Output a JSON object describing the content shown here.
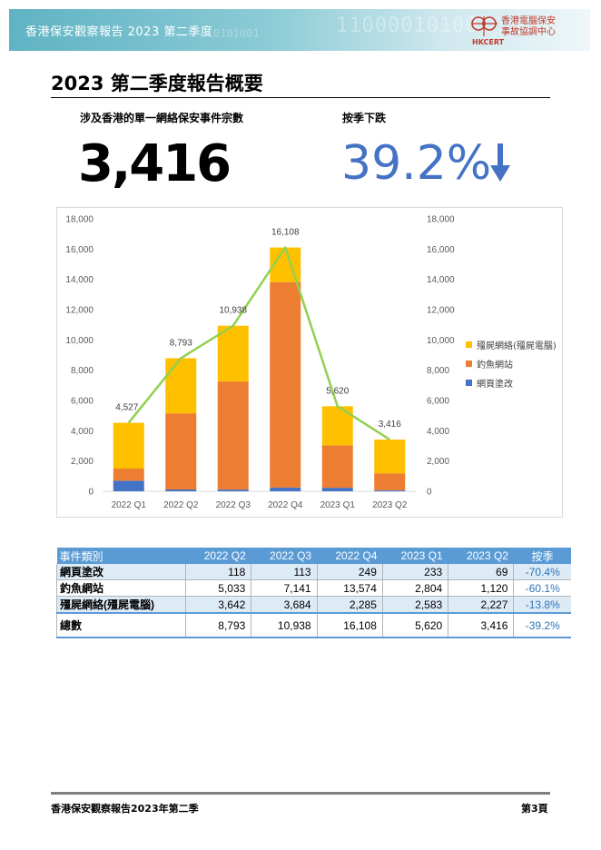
{
  "header": {
    "banner_title": "香港保安觀察報告 2023 第二季度",
    "binary_text": "110000101001",
    "binary_text2": "0101001",
    "logo_org_line1": "香港電腦保安",
    "logo_org_line2": "事故協調中心",
    "logo_abbr": "HKCERT"
  },
  "page_title": "2023 第二季度報告概要",
  "summary": {
    "count_label": "涉及香港的單一網絡保安事件宗數",
    "count_value": "3,416",
    "change_label": "按季下跌",
    "change_value": "39.2%"
  },
  "chart_data": {
    "type": "bar",
    "stacked": true,
    "categories": [
      "2022 Q1",
      "2022 Q2",
      "2022 Q3",
      "2022 Q4",
      "2023 Q1",
      "2023 Q2"
    ],
    "series": [
      {
        "name": "網頁塗改",
        "color": "#4472c4",
        "values": [
          700,
          118,
          113,
          249,
          233,
          69
        ]
      },
      {
        "name": "釣魚網站",
        "color": "#ed7d31",
        "values": [
          800,
          5033,
          7141,
          13574,
          2804,
          1120
        ]
      },
      {
        "name": "殭屍網絡(殭屍電腦)",
        "color": "#ffc000",
        "values": [
          3027,
          3642,
          3684,
          2285,
          2583,
          2227
        ]
      }
    ],
    "totals_line": {
      "color": "#92d050",
      "values": [
        4527,
        8793,
        10938,
        16108,
        5620,
        3416
      ]
    },
    "total_labels": [
      "4,527",
      "8,793",
      "10,938",
      "16,108",
      "5,620",
      "3,416"
    ],
    "ylim": [
      0,
      18000
    ],
    "yticks": [
      "0",
      "2,000",
      "4,000",
      "6,000",
      "8,000",
      "10,000",
      "12,000",
      "14,000",
      "16,000",
      "18,000"
    ],
    "legend_position": "right",
    "grid": false
  },
  "table": {
    "headers": [
      "事件類別",
      "2022 Q2",
      "2022 Q3",
      "2022 Q4",
      "2023 Q1",
      "2023 Q2",
      "按季"
    ],
    "rows": [
      [
        "網頁塗改",
        "118",
        "113",
        "249",
        "233",
        "69",
        "-70.4%"
      ],
      [
        "釣魚網站",
        "5,033",
        "7,141",
        "13,574",
        "2,804",
        "1,120",
        "-60.1%"
      ],
      [
        "殭屍網絡(殭屍電腦)",
        "3,642",
        "3,684",
        "2,285",
        "2,583",
        "2,227",
        "-13.8%"
      ],
      [
        "總數",
        "8,793",
        "10,938",
        "16,108",
        "5,620",
        "3,416",
        "-39.2%"
      ]
    ]
  },
  "footer": {
    "left": "香港保安觀察報告2023年第二季",
    "right": "第3頁"
  },
  "colors": {
    "accent_blue": "#4472c4",
    "table_header": "#5b9bd5",
    "banner": "#5fb3c3"
  }
}
